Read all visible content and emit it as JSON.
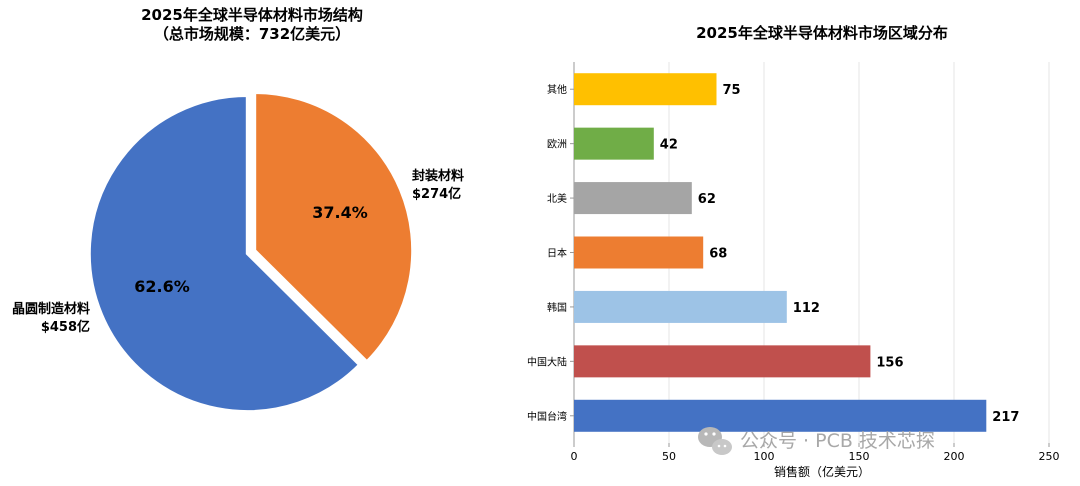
{
  "chart_data": [
    {
      "type": "pie",
      "title": "2025年全球半导体材料市场结构",
      "subtitle": "（总市场规模：732亿美元）",
      "slices": [
        {
          "label": "晶圆制造材料",
          "value_label": "$458亿",
          "value": 458,
          "percent": "62.6%",
          "color": "#4472c4"
        },
        {
          "label": "封装材料",
          "value_label": "$274亿",
          "value": 274,
          "percent": "37.4%",
          "color": "#ed7d31"
        }
      ]
    },
    {
      "type": "bar",
      "orientation": "horizontal",
      "title": "2025年全球半导体材料市场区域分布",
      "xlabel": "销售额（亿美元）",
      "ylabel": "",
      "xlim": [
        0,
        260
      ],
      "x_ticks": [
        "0",
        "50",
        "100",
        "150",
        "200",
        "250"
      ],
      "grid": true,
      "categories": [
        "其他",
        "欧洲",
        "北美",
        "日本",
        "韩国",
        "中国大陆",
        "中国台湾"
      ],
      "values": [
        75,
        42,
        62,
        68,
        112,
        156,
        217
      ],
      "colors": [
        "#ffc000",
        "#70ad47",
        "#a5a5a5",
        "#ed7d31",
        "#9dc3e6",
        "#c0504d",
        "#4472c4"
      ]
    }
  ],
  "watermark": "公众号 · PCB 技术芯探"
}
